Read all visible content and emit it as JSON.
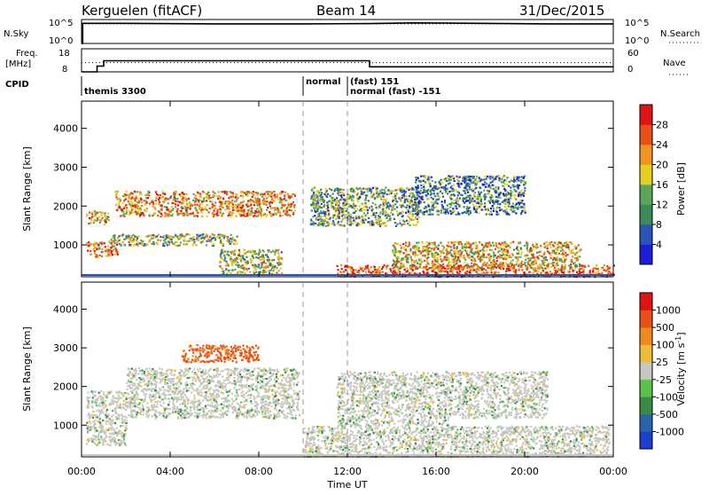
{
  "header": {
    "station": "Kerguelen (fitACF)",
    "beam": "Beam 14",
    "date": "31/Dec/2015"
  },
  "chart_data": [
    {
      "type": "line",
      "title": "",
      "left_label": "N.Sky",
      "right_label": "N.Search",
      "left_ticks": [
        "10^5",
        "10^0"
      ],
      "right_ticks": [
        "10^5",
        "10^0"
      ],
      "series": [
        {
          "name": "N.Sky",
          "style": "solid",
          "x": [
            0,
            0.05,
            0.05,
            2,
            6,
            10,
            13,
            15,
            18,
            21,
            24
          ],
          "values": [
            0,
            0,
            4.2,
            4.2,
            4.1,
            4.1,
            4.15,
            4.3,
            4.2,
            4.1,
            4.1
          ]
        },
        {
          "name": "N.Search",
          "style": "dotted",
          "x": [
            0,
            24
          ],
          "values": [
            4.1,
            4.1
          ]
        }
      ],
      "ylim": [
        0,
        5
      ]
    },
    {
      "type": "line",
      "left_label": "Freq. [MHz]",
      "right_label": "Nave",
      "left_ticks": [
        "18",
        "8"
      ],
      "right_ticks": [
        "60",
        "0"
      ],
      "series": [
        {
          "name": "Freq",
          "style": "solid",
          "x": [
            0,
            0.7,
            0.7,
            1.0,
            1.0,
            13.0,
            13.0,
            24
          ],
          "values": [
            8,
            8,
            10.5,
            10.5,
            12.8,
            12.8,
            10.2,
            10.2
          ]
        },
        {
          "name": "Nave",
          "style": "dotted",
          "x": [
            0,
            24
          ],
          "values": [
            12.0,
            12.0
          ]
        }
      ],
      "ylim": [
        8,
        18
      ]
    },
    {
      "type": "table",
      "label": "CPID",
      "entries": [
        {
          "start": 0.0,
          "text": "themis 3300"
        },
        {
          "start": 10.0,
          "text": "normal"
        },
        {
          "start": 12.0,
          "text": "(fast) 151"
        },
        {
          "start": 12.0,
          "text": "normal (fast) -151"
        }
      ]
    },
    {
      "type": "heatmap",
      "quantity": "Power",
      "ylabel": "Slant Range [km]",
      "ylim": [
        180,
        4700
      ],
      "yticks": [
        1000,
        2000,
        3000,
        4000
      ],
      "colorbar_label": "Power [dB]",
      "colorbar_ticks": [
        "4",
        "8",
        "12",
        "16",
        "20",
        "24",
        "28"
      ],
      "colorbar_colors": [
        "#1d1dd8",
        "#2a55b8",
        "#3a8a5a",
        "#5ba55a",
        "#e5cf1f",
        "#f09620",
        "#e85016",
        "#dd1512"
      ],
      "echo_regions": [
        {
          "t0": 0.2,
          "t1": 1.2,
          "r0": 1550,
          "r1": 1900,
          "level": 0.6
        },
        {
          "t0": 0.2,
          "t1": 1.6,
          "r0": 700,
          "r1": 1100,
          "level": 0.75
        },
        {
          "t0": 1.5,
          "t1": 9.6,
          "r0": 1750,
          "r1": 2400,
          "level": 0.7
        },
        {
          "t0": 1.2,
          "t1": 7.0,
          "r0": 1000,
          "r1": 1300,
          "level": 0.45
        },
        {
          "t0": 6.2,
          "t1": 9.0,
          "r0": 250,
          "r1": 900,
          "level": 0.5
        },
        {
          "t0": 10.3,
          "t1": 15.2,
          "r0": 1500,
          "r1": 2500,
          "level": 0.4
        },
        {
          "t0": 11.5,
          "t1": 24.0,
          "r0": 200,
          "r1": 500,
          "level": 0.85
        },
        {
          "t0": 14.0,
          "t1": 22.5,
          "r0": 400,
          "r1": 1100,
          "level": 0.6
        },
        {
          "t0": 15.0,
          "t1": 20.0,
          "r0": 1800,
          "r1": 2800,
          "level": 0.3
        }
      ]
    },
    {
      "type": "heatmap",
      "quantity": "Velocity",
      "ylabel": "Slant Range [km]",
      "ylim": [
        180,
        4700
      ],
      "yticks": [
        1000,
        2000,
        3000,
        4000
      ],
      "xticks": [
        "00:00",
        "04:00",
        "08:00",
        "12:00",
        "16:00",
        "20:00",
        "00:00"
      ],
      "xlabel": "Time UT",
      "colorbar_label": "Velocity [m s^-1]",
      "colorbar_ticks": [
        "1000",
        "500",
        "100",
        "25",
        "-25",
        "-100",
        "-500",
        "-1000"
      ],
      "colorbar_colors": [
        "#1d3fcf",
        "#2a62b0",
        "#3a8a45",
        "#5bc14a",
        "#c8c8c3",
        "#eebc3a",
        "#f08a20",
        "#e85016",
        "#dd1512"
      ],
      "echo_regions": [
        {
          "t0": 2.0,
          "t1": 9.8,
          "r0": 1200,
          "r1": 2500,
          "level": 0.5
        },
        {
          "t0": 0.2,
          "t1": 2.0,
          "r0": 500,
          "r1": 1900,
          "level": 0.5
        },
        {
          "t0": 4.5,
          "t1": 8.0,
          "r0": 2650,
          "r1": 3100,
          "level": 0.95
        },
        {
          "t0": 10.0,
          "t1": 23.8,
          "r0": 200,
          "r1": 1000,
          "level": 0.5
        },
        {
          "t0": 11.5,
          "t1": 16.5,
          "r0": 1000,
          "r1": 2400,
          "level": 0.5
        },
        {
          "t0": 16.5,
          "t1": 21.0,
          "r0": 1200,
          "r1": 2400,
          "level": 0.5
        }
      ]
    }
  ],
  "time_axis": {
    "xlim": [
      0,
      24
    ],
    "dashed_markers": [
      10.0,
      12.0
    ]
  }
}
